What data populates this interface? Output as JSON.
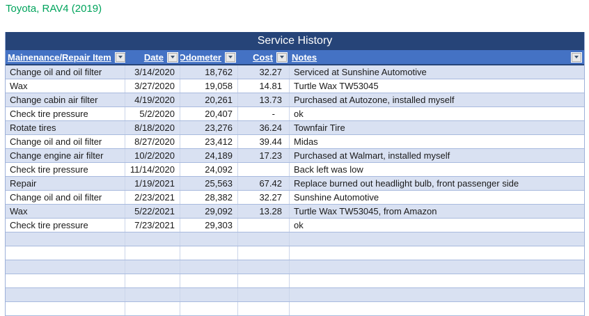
{
  "page": {
    "title": "Toyota, RAV4 (2019)"
  },
  "table": {
    "title": "Service History",
    "columns": [
      {
        "label": "Mainenance/Repair Item",
        "key": "item",
        "align": "left"
      },
      {
        "label": "Date",
        "key": "date",
        "align": "right"
      },
      {
        "label": "Odometer",
        "key": "odometer",
        "align": "right"
      },
      {
        "label": "Cost",
        "key": "cost",
        "align": "right"
      },
      {
        "label": "Notes",
        "key": "notes",
        "align": "left"
      }
    ],
    "rows": [
      {
        "item": "Change oil and oil filter",
        "date": "3/14/2020",
        "odometer": "18,762",
        "cost": "32.27",
        "notes": "Serviced at Sunshine Automotive"
      },
      {
        "item": "Wax",
        "date": "3/27/2020",
        "odometer": "19,058",
        "cost": "14.81",
        "notes": "Turtle Wax TW53045"
      },
      {
        "item": "Change cabin air filter",
        "date": "4/19/2020",
        "odometer": "20,261",
        "cost": "13.73",
        "notes": "Purchased at Autozone, installed myself"
      },
      {
        "item": "Check tire pressure",
        "date": "5/2/2020",
        "odometer": "20,407",
        "cost": "-",
        "notes": "ok"
      },
      {
        "item": "Rotate tires",
        "date": "8/18/2020",
        "odometer": "23,276",
        "cost": "36.24",
        "notes": "Townfair Tire"
      },
      {
        "item": "Change oil and oil filter",
        "date": "8/27/2020",
        "odometer": "23,412",
        "cost": "39.44",
        "notes": "Midas"
      },
      {
        "item": "Change engine air filter",
        "date": "10/2/2020",
        "odometer": "24,189",
        "cost": "17.23",
        "notes": "Purchased at Walmart, installed myself"
      },
      {
        "item": "Check tire pressure",
        "date": "11/14/2020",
        "odometer": "24,092",
        "cost": "",
        "notes": "Back left was low"
      },
      {
        "item": "Repair",
        "date": "1/19/2021",
        "odometer": "25,563",
        "cost": "67.42",
        "notes": "Replace burned out headlight bulb, front passenger side"
      },
      {
        "item": "Change oil and oil filter",
        "date": "2/23/2021",
        "odometer": "28,382",
        "cost": "32.27",
        "notes": "Sunshine Automotive"
      },
      {
        "item": "Wax",
        "date": "5/22/2021",
        "odometer": "29,092",
        "cost": "13.28",
        "notes": "Turtle Wax TW53045, from Amazon"
      },
      {
        "item": "Check tire pressure",
        "date": "7/23/2021",
        "odometer": "29,303",
        "cost": "",
        "notes": "ok"
      }
    ],
    "empty_row_count": 6,
    "icons": {
      "filter_dropdown": "triangle-down-icon"
    }
  },
  "colors": {
    "doc_title_text": "#00A45C",
    "table_title_bg": "#264478",
    "header_bg": "#4472C4",
    "band_row_bg": "#D9E1F2",
    "row_border": "#A8BADE",
    "header_text": "#FFFFFF"
  }
}
